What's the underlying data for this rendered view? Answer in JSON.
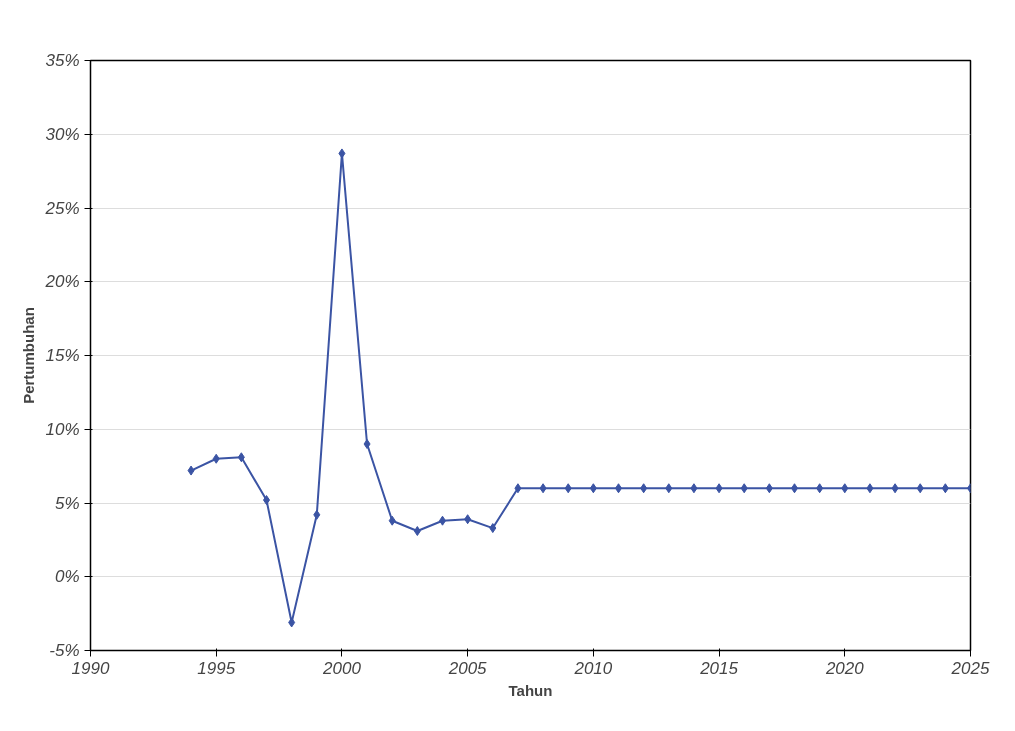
{
  "chart_data": {
    "type": "line",
    "xlabel": "Tahun",
    "ylabel": "Pertumbuhan",
    "x": [
      1994,
      1995,
      1996,
      1997,
      1998,
      1999,
      2000,
      2001,
      2002,
      2003,
      2004,
      2005,
      2006,
      2007,
      2008,
      2009,
      2010,
      2011,
      2012,
      2013,
      2014,
      2015,
      2016,
      2017,
      2018,
      2019,
      2020,
      2021,
      2022,
      2023,
      2024,
      2025
    ],
    "series": [
      {
        "color": "#3b54a4",
        "values": [
          7.2,
          8.0,
          8.1,
          5.2,
          -3.1,
          4.2,
          28.7,
          9.0,
          3.8,
          3.1,
          3.8,
          3.9,
          3.3,
          6.0,
          6.0,
          6.0,
          6.0,
          6.0,
          6.0,
          6.0,
          6.0,
          6.0,
          6.0,
          6.0,
          6.0,
          6.0,
          6.0,
          6.0,
          6.0,
          6.0,
          6.0,
          6.0
        ]
      }
    ],
    "xlim": [
      1990,
      2025
    ],
    "xticks": [
      1990,
      1995,
      2000,
      2005,
      2010,
      2015,
      2020,
      2025
    ],
    "ylim": [
      -5,
      35
    ],
    "yticks": [
      {
        "value": -5,
        "label": "-5%"
      },
      {
        "value": 0,
        "label": "0%"
      },
      {
        "value": 5,
        "label": "5%"
      },
      {
        "value": 10,
        "label": "10%"
      },
      {
        "value": 15,
        "label": "15%"
      },
      {
        "value": 20,
        "label": "20%"
      },
      {
        "value": 25,
        "label": "25%"
      },
      {
        "value": 30,
        "label": "30%"
      },
      {
        "value": 35,
        "label": "35%"
      }
    ],
    "grid": "y",
    "marker": "diamond",
    "line_style": "solid"
  }
}
